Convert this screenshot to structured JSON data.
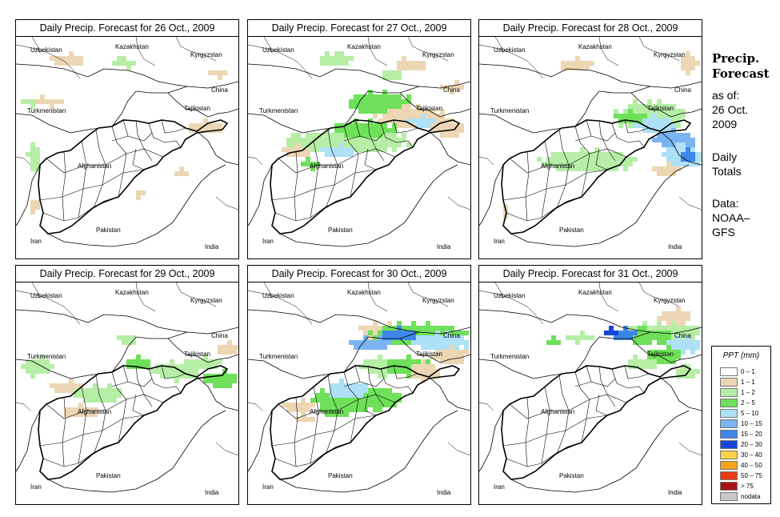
{
  "panels": [
    {
      "title": "Daily Precip. Forecast for  26 Oct., 2009"
    },
    {
      "title": "Daily Precip. Forecast for  27 Oct., 2009"
    },
    {
      "title": "Daily Precip. Forecast for  28 Oct., 2009"
    },
    {
      "title": "Daily Precip. Forecast for  29 Oct., 2009"
    },
    {
      "title": "Daily Precip. Forecast for  30 Oct., 2009"
    },
    {
      "title": "Daily Precip. Forecast for  31 Oct., 2009"
    }
  ],
  "map_labels": {
    "kazakhstan": "Kazakhstan",
    "uzbekistan": "Uzbekistan",
    "kyrgyzstan": "Kyrgyzstan",
    "china": "China",
    "turkmenistan": "Turkmenistan",
    "tajikistan": "Tajikistan",
    "afghanistan": "Afghanistan",
    "pakistan": "Pakistan",
    "iran": "Iran",
    "india": "India"
  },
  "side": {
    "title_line1": "Precip.",
    "title_line2": "Forecast",
    "asof_line1": "as of:",
    "asof_line2": "26 Oct.",
    "asof_line3": "2009",
    "totals_line1": "Daily",
    "totals_line2": "Totals",
    "data_line1": "Data:",
    "data_line2": "NOAA–",
    "data_line3": "GFS"
  },
  "legend": {
    "title": "PPT (mm)",
    "items": [
      {
        "label": "0 – 1",
        "color": "#ffffff"
      },
      {
        "label": "1 – 1",
        "color": "#ecd6b4"
      },
      {
        "label": "1 – 2",
        "color": "#b6eea6"
      },
      {
        "label": "2 – 5",
        "color": "#6fe05a"
      },
      {
        "label": "5 – 10",
        "color": "#aee0f6"
      },
      {
        "label": "10 – 15",
        "color": "#7ab4f2"
      },
      {
        "label": "15 – 20",
        "color": "#3e86ea"
      },
      {
        "label": "20 – 30",
        "color": "#1646d6"
      },
      {
        "label": "30 – 40",
        "color": "#f6d44a"
      },
      {
        "label": "40 – 50",
        "color": "#f4a11e"
      },
      {
        "label": "50 – 75",
        "color": "#ea3a12"
      },
      {
        "label": "> 75",
        "color": "#a81414"
      },
      {
        "label": "nodata",
        "color": "#c8c8c8"
      }
    ]
  }
}
